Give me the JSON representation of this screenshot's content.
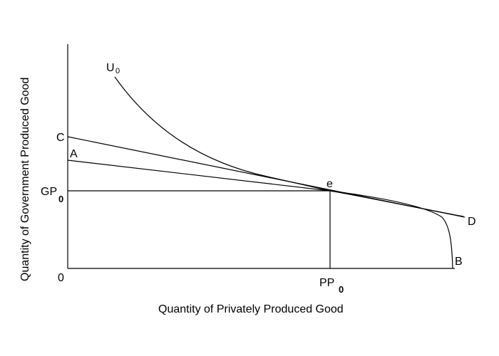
{
  "diagram": {
    "x_axis_title": "Quantity of Privately Produced Good",
    "y_axis_title": "Quantity of Government Produced Good",
    "origin_label": "0",
    "point_labels": {
      "C": "C",
      "A": "A",
      "e": "e",
      "D": "D",
      "B": "B"
    },
    "curve_label": {
      "main": "U",
      "sub": "0"
    },
    "gp_label": {
      "main": "GP",
      "sub": "0"
    },
    "pp_label": {
      "main": "PP",
      "sub": "0"
    },
    "colors": {
      "ink": "#000000",
      "background": "#ffffff"
    }
  }
}
